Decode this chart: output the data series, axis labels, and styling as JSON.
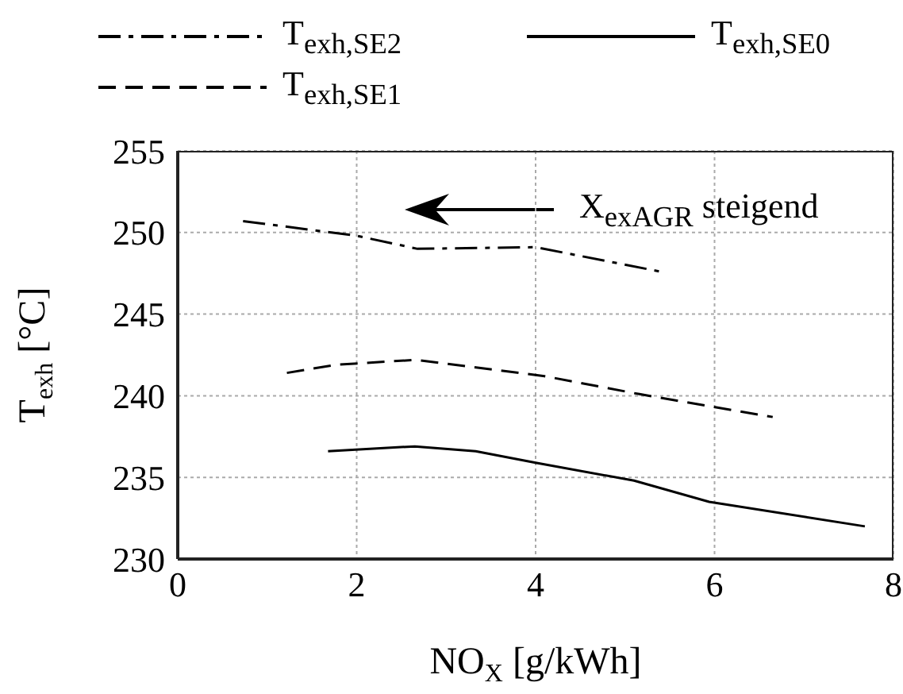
{
  "chart_data": {
    "type": "line",
    "xlabel": "NO$_{X}$ [g/kWh]",
    "ylabel": "T$_{exh}$ [°C]",
    "xlim": [
      0,
      8
    ],
    "xticks": [
      0,
      2,
      4,
      6,
      8
    ],
    "ylim": [
      230,
      255
    ],
    "yticks": [
      230,
      235,
      240,
      245,
      250,
      255
    ],
    "grid": true,
    "legend": "top",
    "marker": "none",
    "annotations": [
      "X$_{exAGR}$ steigend"
    ],
    "series": [
      {
        "name": "T$_{exh,SE2}$",
        "color": "#000000",
        "line_style": "dashdot",
        "x": [
          0.73,
          2.0,
          2.68,
          4.0,
          5.4
        ],
        "values": [
          250.7,
          249.8,
          249.0,
          249.1,
          247.6
        ]
      },
      {
        "name": "T$_{exh,SE1}$",
        "color": "#000000",
        "line_style": "dashed",
        "x": [
          1.22,
          1.77,
          2.66,
          4.1,
          5.16,
          6.65
        ],
        "values": [
          241.4,
          241.9,
          242.2,
          241.2,
          240.1,
          238.7
        ]
      },
      {
        "name": "T$_{exh,SE0}$",
        "color": "#000000",
        "line_style": "solid",
        "x": [
          1.68,
          2.65,
          3.33,
          4.0,
          5.1,
          5.94,
          7.68
        ],
        "values": [
          236.6,
          236.9,
          236.6,
          235.9,
          234.8,
          233.5,
          232.0
        ]
      }
    ]
  }
}
